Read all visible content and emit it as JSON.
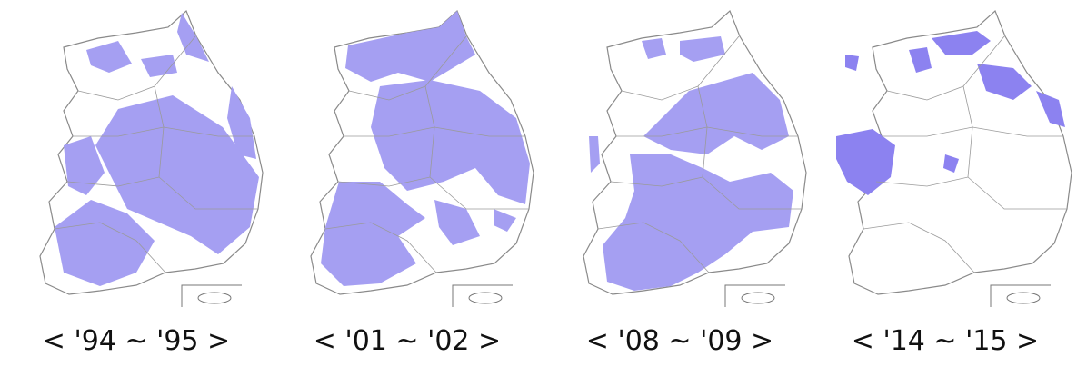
{
  "panels": [
    {
      "label": "< '94 ~ '95 >"
    },
    {
      "label": "< '01 ~ '02 >"
    },
    {
      "label": "< '08 ~ '09 >"
    },
    {
      "label": "< '14 ~ '15 >"
    }
  ]
}
